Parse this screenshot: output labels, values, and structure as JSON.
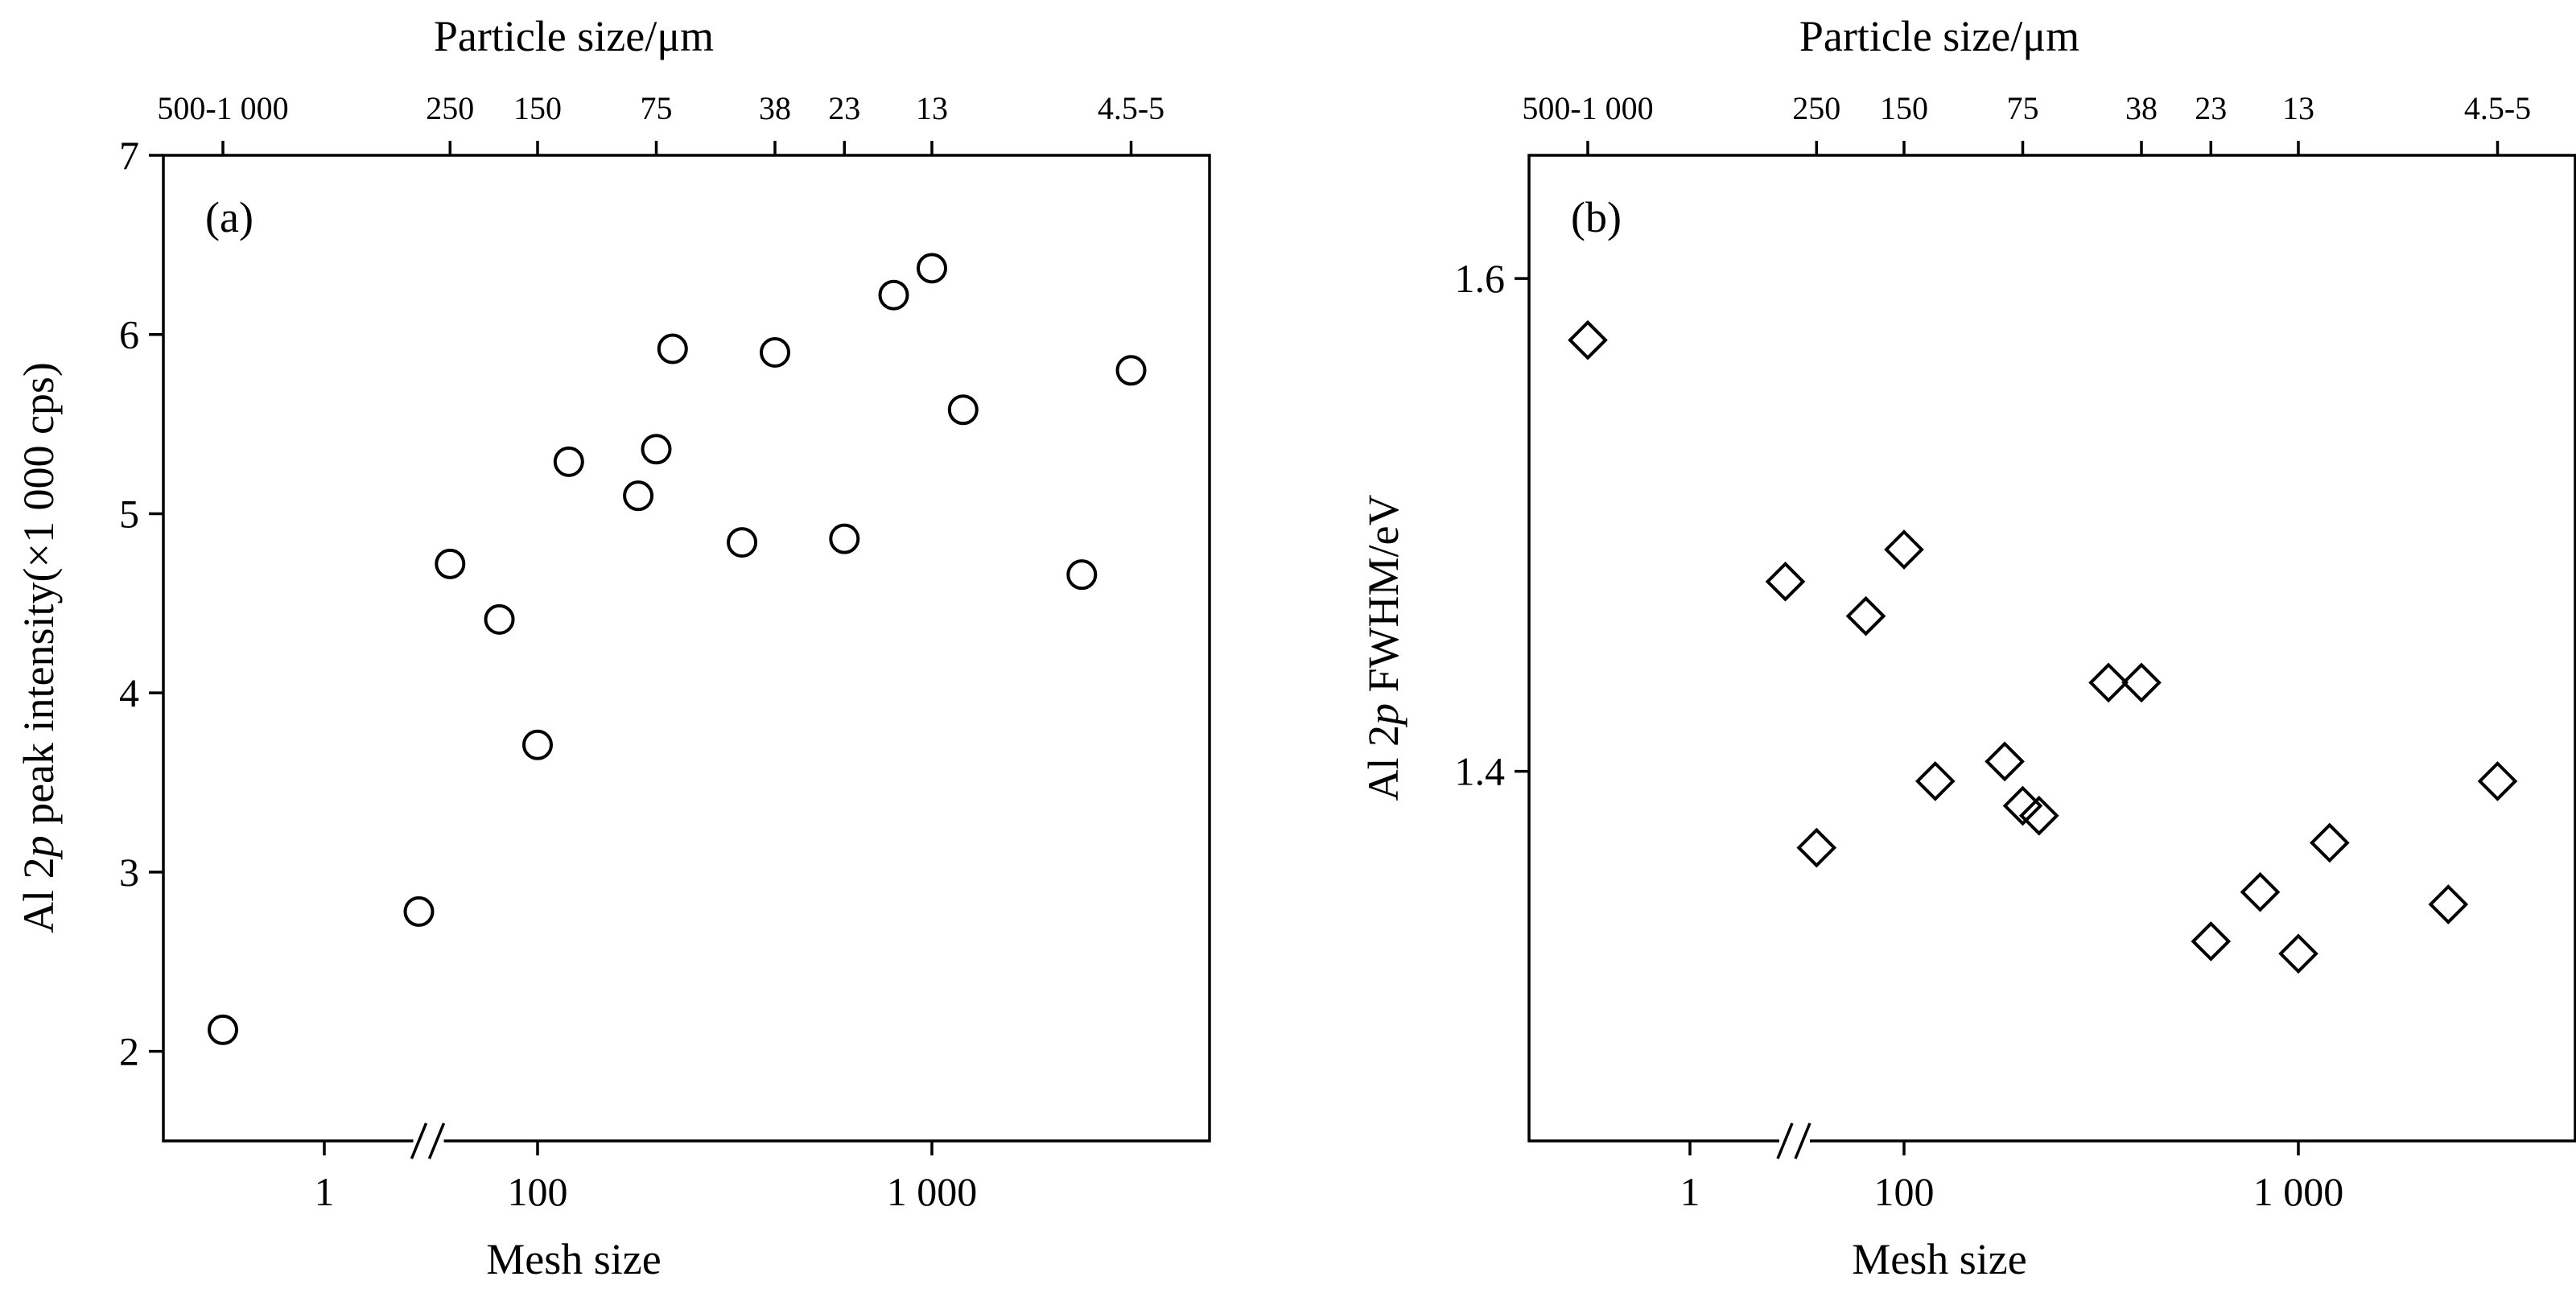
{
  "chart_data": [
    {
      "type": "scatter",
      "panel_label": "(a)",
      "xlabel": "Mesh size",
      "ylabel": "Al 2p peak intensity(×1 000 cps)",
      "x_axis_scale": "log, broken between 1 and 100",
      "ylim": [
        1.5,
        7
      ],
      "x_ticks": [
        {
          "label": "1",
          "value": 1
        },
        {
          "label": "100",
          "value": 100
        },
        {
          "label": "1 000",
          "value": 1000
        }
      ],
      "y_ticks": [
        {
          "label": "2",
          "value": 2
        },
        {
          "label": "3",
          "value": 3
        },
        {
          "label": "4",
          "value": 4
        },
        {
          "label": "5",
          "value": 5
        },
        {
          "label": "6",
          "value": 6
        },
        {
          "label": "7",
          "value": 7
        }
      ],
      "top_axis_label": "Particle size/μm",
      "top_ticks": [
        {
          "label": "500-1 000",
          "mesh": 0.3
        },
        {
          "label": "250",
          "mesh": 60
        },
        {
          "label": "150",
          "mesh": 100
        },
        {
          "label": "75",
          "mesh": 200
        },
        {
          "label": "38",
          "mesh": 400
        },
        {
          "label": "23",
          "mesh": 600
        },
        {
          "label": "13",
          "mesh": 1000
        },
        {
          "label": "4.5-5",
          "mesh": 3200
        }
      ],
      "marker": "circle",
      "x": [
        0.3,
        50,
        60,
        80,
        100,
        120,
        180,
        200,
        220,
        330,
        400,
        600,
        800,
        1000,
        1200,
        2400,
        3200
      ],
      "y": [
        2.12,
        2.78,
        4.72,
        4.41,
        3.71,
        5.29,
        5.1,
        5.36,
        5.92,
        4.84,
        5.9,
        4.86,
        6.22,
        6.37,
        5.58,
        4.66,
        5.8
      ]
    },
    {
      "type": "scatter",
      "panel_label": "(b)",
      "xlabel": "Mesh size",
      "ylabel": "Al 2p FWHM/eV",
      "x_axis_scale": "log, broken between 1 and 100",
      "ylim": [
        1.25,
        1.65
      ],
      "x_ticks": [
        {
          "label": "1",
          "value": 1
        },
        {
          "label": "100",
          "value": 100
        },
        {
          "label": "1 000",
          "value": 1000
        }
      ],
      "y_ticks": [
        {
          "label": "1.4",
          "value": 1.4
        },
        {
          "label": "1.6",
          "value": 1.6
        }
      ],
      "top_axis_label": "Particle size/μm",
      "top_ticks": [
        {
          "label": "500-1 000",
          "mesh": 0.3
        },
        {
          "label": "250",
          "mesh": 60
        },
        {
          "label": "150",
          "mesh": 100
        },
        {
          "label": "75",
          "mesh": 200
        },
        {
          "label": "38",
          "mesh": 400
        },
        {
          "label": "23",
          "mesh": 600
        },
        {
          "label": "13",
          "mesh": 1000
        },
        {
          "label": "4.5-5",
          "mesh": 3200
        }
      ],
      "marker": "diamond",
      "x": [
        0.3,
        50,
        60,
        80,
        100,
        120,
        180,
        200,
        220,
        330,
        400,
        600,
        800,
        1000,
        1200,
        2400,
        3200
      ],
      "y": [
        1.575,
        1.477,
        1.369,
        1.463,
        1.49,
        1.396,
        1.404,
        1.386,
        1.382,
        1.436,
        1.436,
        1.331,
        1.351,
        1.326,
        1.371,
        1.346,
        1.396
      ]
    }
  ]
}
